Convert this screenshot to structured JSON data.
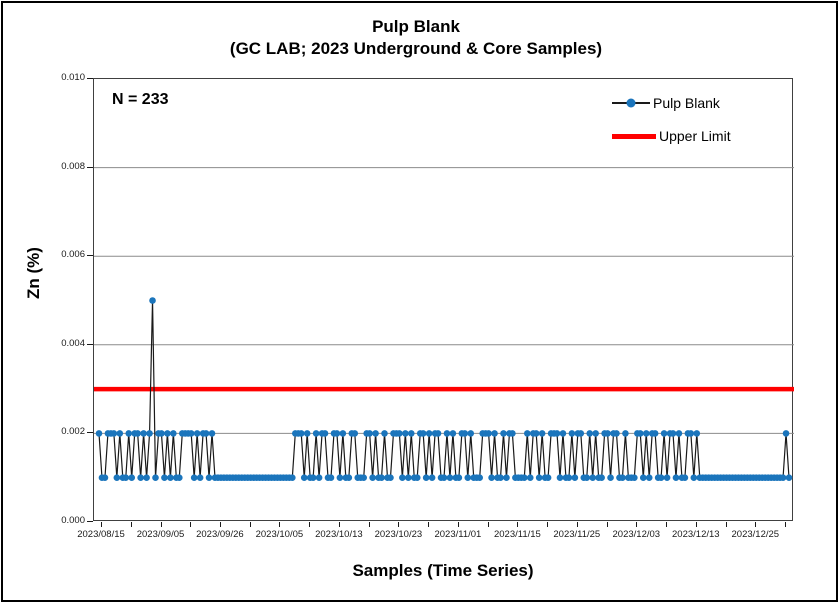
{
  "chart_data": {
    "type": "line",
    "title": "Pulp Blank",
    "subtitle": "(GC LAB; 2023 Underground & Core Samples)",
    "xlabel": "Samples (Time Series)",
    "ylabel": "Zn (%)",
    "annotation": "N = 233",
    "sample_count": 233,
    "ylim": [
      0,
      0.01
    ],
    "y_tick_labels": [
      "0.010",
      "0.008",
      "0.006",
      "0.004",
      "0.002",
      "0.000"
    ],
    "gridline_values": [
      0.002,
      0.004,
      0.006,
      0.008
    ],
    "x_tick_labels": [
      "2023/08/15",
      "2023/09/05",
      "2023/09/26",
      "2023/10/05",
      "2023/10/13",
      "2023/10/23",
      "2023/11/01",
      "2023/11/15",
      "2023/11/25",
      "2023/12/03",
      "2023/12/13",
      "2023/12/25"
    ],
    "x_label_every_n_samples": 20,
    "x_tick_every_n_samples": 10,
    "legend": [
      {
        "label": "Pulp Blank"
      },
      {
        "label": "Upper Limit"
      }
    ],
    "legend_position": "top-right inside",
    "grid": "horizontal",
    "colors": {
      "marker": "#1B75BC",
      "line": "#1A1A1A",
      "upper_limit": "#FF0000",
      "grid": "#8C8C8C"
    },
    "upper_limit_value": 0.003,
    "series": [
      {
        "name": "Pulp Blank",
        "values": [
          0.002,
          0.001,
          0.001,
          0.002,
          0.002,
          0.002,
          0.001,
          0.002,
          0.001,
          0.001,
          0.002,
          0.001,
          0.002,
          0.002,
          0.001,
          0.002,
          0.001,
          0.002,
          0.005,
          0.001,
          0.002,
          0.002,
          0.001,
          0.002,
          0.001,
          0.002,
          0.001,
          0.001,
          0.002,
          0.002,
          0.002,
          0.002,
          0.001,
          0.002,
          0.001,
          0.002,
          0.002,
          0.001,
          0.002,
          0.001,
          0.001,
          0.001,
          0.001,
          0.001,
          0.001,
          0.001,
          0.001,
          0.001,
          0.001,
          0.001,
          0.001,
          0.001,
          0.001,
          0.001,
          0.001,
          0.001,
          0.001,
          0.001,
          0.001,
          0.001,
          0.001,
          0.001,
          0.001,
          0.001,
          0.001,
          0.001,
          0.002,
          0.002,
          0.002,
          0.001,
          0.002,
          0.001,
          0.001,
          0.002,
          0.001,
          0.002,
          0.002,
          0.001,
          0.001,
          0.002,
          0.002,
          0.001,
          0.002,
          0.001,
          0.001,
          0.002,
          0.002,
          0.001,
          0.001,
          0.001,
          0.002,
          0.002,
          0.001,
          0.002,
          0.001,
          0.001,
          0.002,
          0.001,
          0.001,
          0.002,
          0.002,
          0.002,
          0.001,
          0.002,
          0.001,
          0.002,
          0.001,
          0.001,
          0.002,
          0.002,
          0.001,
          0.002,
          0.001,
          0.002,
          0.002,
          0.001,
          0.001,
          0.002,
          0.001,
          0.002,
          0.001,
          0.001,
          0.002,
          0.002,
          0.001,
          0.002,
          0.001,
          0.001,
          0.001,
          0.002,
          0.002,
          0.002,
          0.001,
          0.002,
          0.001,
          0.001,
          0.002,
          0.001,
          0.002,
          0.002,
          0.001,
          0.001,
          0.001,
          0.001,
          0.002,
          0.001,
          0.002,
          0.002,
          0.001,
          0.002,
          0.001,
          0.001,
          0.002,
          0.002,
          0.002,
          0.001,
          0.002,
          0.001,
          0.001,
          0.002,
          0.001,
          0.002,
          0.002,
          0.001,
          0.001,
          0.002,
          0.001,
          0.002,
          0.001,
          0.001,
          0.002,
          0.002,
          0.001,
          0.002,
          0.002,
          0.001,
          0.001,
          0.002,
          0.001,
          0.001,
          0.001,
          0.002,
          0.002,
          0.001,
          0.002,
          0.001,
          0.002,
          0.002,
          0.001,
          0.001,
          0.002,
          0.001,
          0.002,
          0.002,
          0.001,
          0.002,
          0.001,
          0.001,
          0.002,
          0.002,
          0.001,
          0.002,
          0.001,
          0.001,
          0.001,
          0.001,
          0.001,
          0.001,
          0.001,
          0.001,
          0.001,
          0.001,
          0.001,
          0.001,
          0.001,
          0.001,
          0.001,
          0.001,
          0.001,
          0.001,
          0.001,
          0.001,
          0.001,
          0.001,
          0.001,
          0.001,
          0.001,
          0.001,
          0.001,
          0.001,
          0.001,
          0.002,
          0.001
        ]
      }
    ]
  }
}
